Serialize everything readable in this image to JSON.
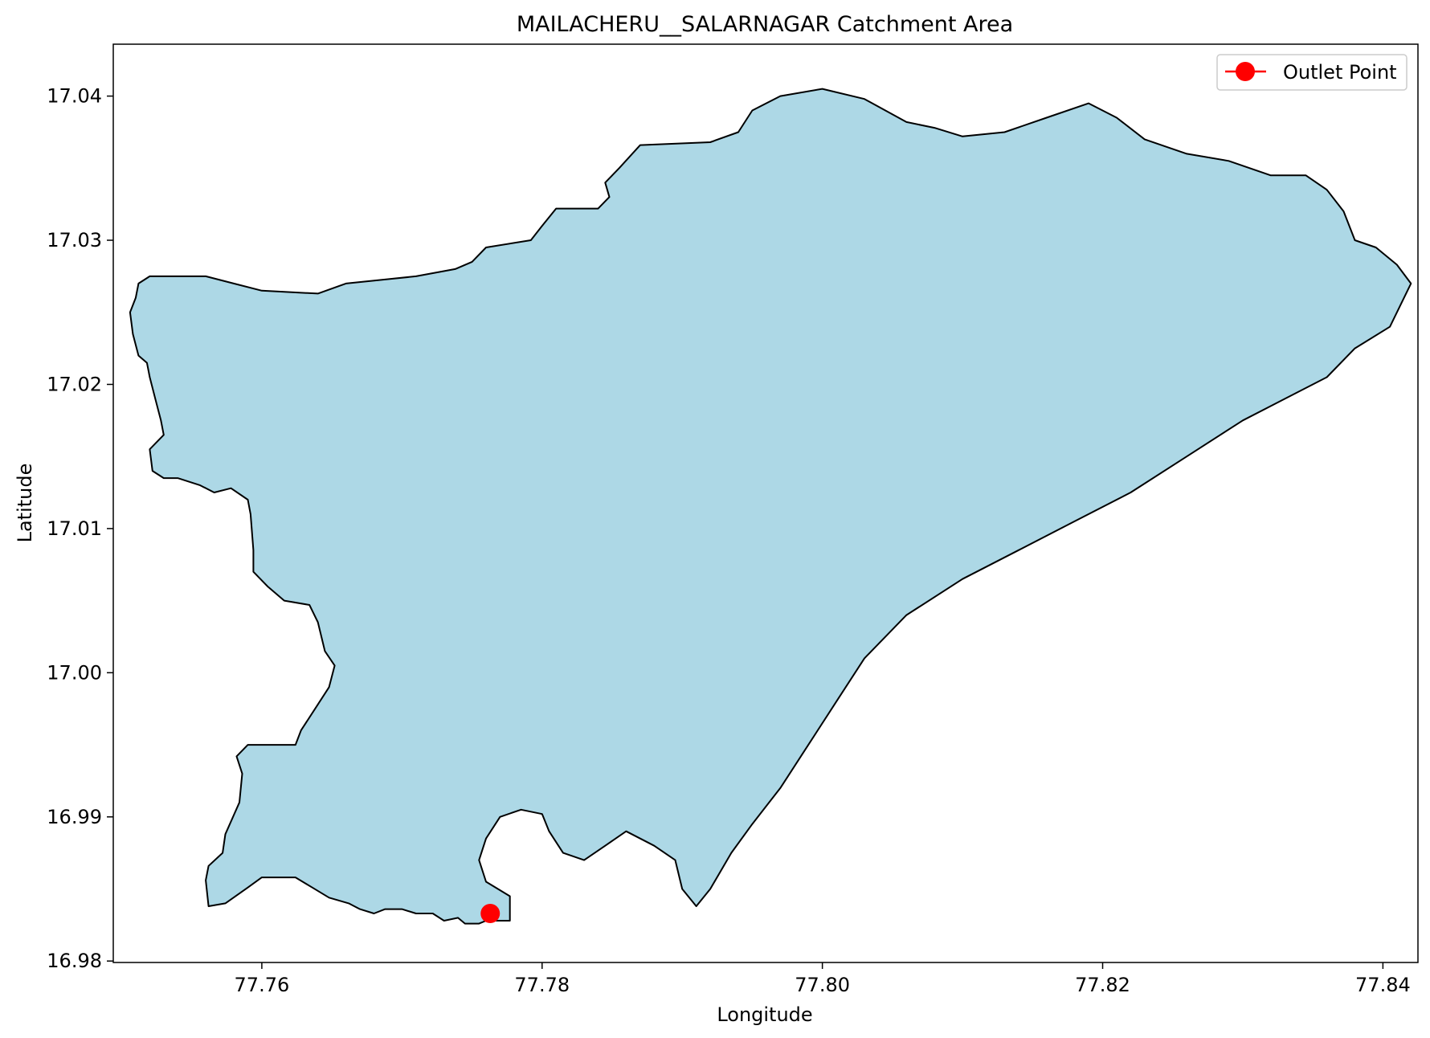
{
  "chart_data": {
    "type": "map",
    "title": "MAILACHERU__SALARNAGAR Catchment Area",
    "xlabel": "Longitude",
    "ylabel": "Latitude",
    "xlim": [
      77.7494,
      77.8425
    ],
    "ylim": [
      16.9799,
      17.0436
    ],
    "xticks": [
      77.76,
      77.78,
      77.8,
      77.82,
      77.84
    ],
    "xtick_labels": [
      "77.76",
      "77.78",
      "77.80",
      "77.82",
      "77.84"
    ],
    "yticks": [
      16.98,
      16.99,
      17.0,
      17.01,
      17.02,
      17.03,
      17.04
    ],
    "ytick_labels": [
      "16.98",
      "16.99",
      "17.00",
      "17.01",
      "17.02",
      "17.03",
      "17.04"
    ],
    "grid": false,
    "legend": {
      "placement": "top-right",
      "entries": [
        {
          "label": "Outlet Point",
          "color": "#ff0000",
          "marker": "circle"
        }
      ]
    },
    "catchment": {
      "fill": "#add8e6",
      "edge": "#000000",
      "boundary": [
        [
          77.7777,
          16.9828
        ],
        [
          77.776,
          16.9828
        ],
        [
          77.7755,
          16.9826
        ],
        [
          77.7745,
          16.9826
        ],
        [
          77.774,
          16.983
        ],
        [
          77.773,
          16.9828
        ],
        [
          77.7722,
          16.9833
        ],
        [
          77.771,
          16.9833
        ],
        [
          77.77,
          16.9836
        ],
        [
          77.7688,
          16.9836
        ],
        [
          77.768,
          16.9833
        ],
        [
          77.767,
          16.9836
        ],
        [
          77.7662,
          16.984
        ],
        [
          77.7648,
          16.9844
        ],
        [
          77.7636,
          16.9851
        ],
        [
          77.7624,
          16.9858
        ],
        [
          77.76,
          16.9858
        ],
        [
          77.759,
          16.9851
        ],
        [
          77.7574,
          16.984
        ],
        [
          77.7562,
          16.9838
        ],
        [
          77.756,
          16.9856
        ],
        [
          77.7562,
          16.9866
        ],
        [
          77.7572,
          16.9875
        ],
        [
          77.7574,
          16.9888
        ],
        [
          77.7584,
          16.991
        ],
        [
          77.7586,
          16.993
        ],
        [
          77.7582,
          16.9942
        ],
        [
          77.759,
          16.995
        ],
        [
          77.7612,
          16.995
        ],
        [
          77.7624,
          16.995
        ],
        [
          77.7628,
          16.996
        ],
        [
          77.7638,
          16.9975
        ],
        [
          77.7648,
          16.999
        ],
        [
          77.7652,
          17.0005
        ],
        [
          77.7645,
          17.0015
        ],
        [
          77.764,
          17.0035
        ],
        [
          77.7634,
          17.0047
        ],
        [
          77.7616,
          17.005
        ],
        [
          77.7604,
          17.006
        ],
        [
          77.7594,
          17.007
        ],
        [
          77.7594,
          17.0085
        ],
        [
          77.7592,
          17.011
        ],
        [
          77.759,
          17.012
        ],
        [
          77.7578,
          17.0128
        ],
        [
          77.7566,
          17.0125
        ],
        [
          77.7556,
          17.013
        ],
        [
          77.754,
          17.0135
        ],
        [
          77.753,
          17.0135
        ],
        [
          77.7522,
          17.014
        ],
        [
          77.752,
          17.0155
        ],
        [
          77.753,
          17.0165
        ],
        [
          77.7528,
          17.0175
        ],
        [
          77.7524,
          17.019
        ],
        [
          77.752,
          17.0205
        ],
        [
          77.7518,
          17.0215
        ],
        [
          77.7512,
          17.022
        ],
        [
          77.7508,
          17.0235
        ],
        [
          77.7506,
          17.025
        ],
        [
          77.751,
          17.026
        ],
        [
          77.7512,
          17.027
        ],
        [
          77.752,
          17.0275
        ],
        [
          77.756,
          17.0275
        ],
        [
          77.758,
          17.027
        ],
        [
          77.76,
          17.0265
        ],
        [
          77.764,
          17.0263
        ],
        [
          77.766,
          17.027
        ],
        [
          77.769,
          17.0273
        ],
        [
          77.771,
          17.0275
        ],
        [
          77.7738,
          17.028
        ],
        [
          77.775,
          17.0285
        ],
        [
          77.776,
          17.0295
        ],
        [
          77.7792,
          17.03
        ],
        [
          77.78,
          17.031
        ],
        [
          77.781,
          17.0322
        ],
        [
          77.784,
          17.0322
        ],
        [
          77.7848,
          17.033
        ],
        [
          77.7845,
          17.034
        ],
        [
          77.7855,
          17.035
        ],
        [
          77.787,
          17.0366
        ],
        [
          77.792,
          17.0368
        ],
        [
          77.794,
          17.0375
        ],
        [
          77.795,
          17.039
        ],
        [
          77.797,
          17.04
        ],
        [
          77.8,
          17.0405
        ],
        [
          77.803,
          17.0398
        ],
        [
          77.806,
          17.0382
        ],
        [
          77.808,
          17.0378
        ],
        [
          77.81,
          17.0372
        ],
        [
          77.813,
          17.0375
        ],
        [
          77.816,
          17.0385
        ],
        [
          77.819,
          17.0395
        ],
        [
          77.821,
          17.0385
        ],
        [
          77.823,
          17.037
        ],
        [
          77.826,
          17.036
        ],
        [
          77.829,
          17.0355
        ],
        [
          77.832,
          17.0345
        ],
        [
          77.8345,
          17.0345
        ],
        [
          77.836,
          17.0335
        ],
        [
          77.8372,
          17.032
        ],
        [
          77.838,
          17.03
        ],
        [
          77.8395,
          17.0295
        ],
        [
          77.841,
          17.0283
        ],
        [
          77.842,
          17.027
        ],
        [
          77.8405,
          17.024
        ],
        [
          77.838,
          17.0225
        ],
        [
          77.836,
          17.0205
        ],
        [
          77.833,
          17.019
        ],
        [
          77.83,
          17.0175
        ],
        [
          77.826,
          17.015
        ],
        [
          77.822,
          17.0125
        ],
        [
          77.818,
          17.0105
        ],
        [
          77.814,
          17.0085
        ],
        [
          77.81,
          17.0065
        ],
        [
          77.806,
          17.004
        ],
        [
          77.803,
          17.001
        ],
        [
          77.801,
          16.998
        ],
        [
          77.799,
          16.995
        ],
        [
          77.797,
          16.992
        ],
        [
          77.795,
          16.9895
        ],
        [
          77.7935,
          16.9875
        ],
        [
          77.792,
          16.985
        ],
        [
          77.791,
          16.9838
        ],
        [
          77.79,
          16.985
        ],
        [
          77.7895,
          16.987
        ],
        [
          77.788,
          16.988
        ],
        [
          77.786,
          16.989
        ],
        [
          77.7845,
          16.988
        ],
        [
          77.783,
          16.987
        ],
        [
          77.7815,
          16.9875
        ],
        [
          77.7805,
          16.989
        ],
        [
          77.78,
          16.9902
        ],
        [
          77.7785,
          16.9905
        ],
        [
          77.777,
          16.99
        ],
        [
          77.776,
          16.9885
        ],
        [
          77.7755,
          16.987
        ],
        [
          77.776,
          16.9855
        ],
        [
          77.7777,
          16.9845
        ],
        [
          77.7777,
          16.9828
        ]
      ]
    },
    "outlet": {
      "lon": 77.7763,
      "lat": 16.9833,
      "color": "#ff0000"
    }
  }
}
